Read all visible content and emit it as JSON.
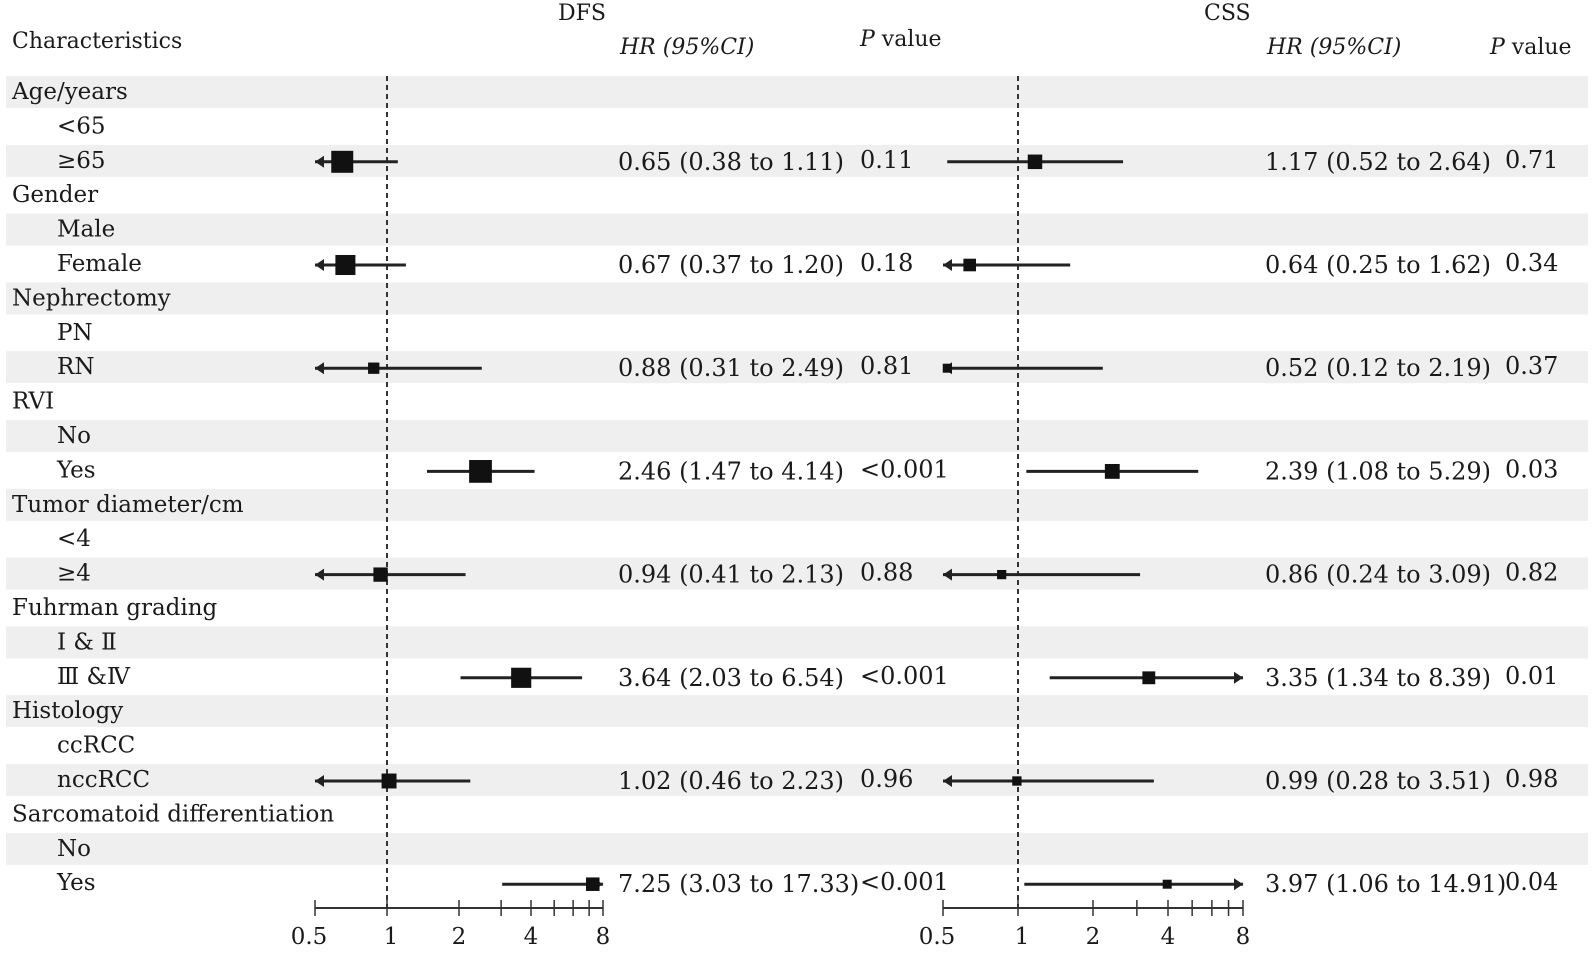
{
  "header": {
    "characteristics": "Characteristics",
    "dfs_title": "DFS",
    "css_title": "CSS",
    "hr_label": "HR (95%CI)",
    "p_italic": "P",
    "p_rest": " value"
  },
  "rows": [
    {
      "text": "Age/years",
      "indent": false
    },
    {
      "text": "<65",
      "indent": true
    },
    {
      "text": "≥65",
      "indent": true
    },
    {
      "text": "Gender",
      "indent": false
    },
    {
      "text": "Male",
      "indent": true
    },
    {
      "text": "Female",
      "indent": true
    },
    {
      "text": "Nephrectomy",
      "indent": false
    },
    {
      "text": "PN",
      "indent": true
    },
    {
      "text": "RN",
      "indent": true
    },
    {
      "text": "RVI",
      "indent": false
    },
    {
      "text": "No",
      "indent": true
    },
    {
      "text": "Yes",
      "indent": true
    },
    {
      "text": "Tumor diameter/cm",
      "indent": false
    },
    {
      "text": "<4",
      "indent": true
    },
    {
      "text": "≥4",
      "indent": true
    },
    {
      "text": "Fuhrman grading",
      "indent": false
    },
    {
      "text": "Ⅰ & Ⅱ",
      "indent": true
    },
    {
      "text": "Ⅲ &Ⅳ",
      "indent": true
    },
    {
      "text": "Histology",
      "indent": false
    },
    {
      "text": "ccRCC",
      "indent": true
    },
    {
      "text": "nccRCC",
      "indent": true
    },
    {
      "text": "Sarcomatoid differentiation",
      "indent": false
    },
    {
      "text": "No",
      "indent": true
    },
    {
      "text": "Yes",
      "indent": true
    }
  ],
  "chart_data": [
    {
      "type": "forest",
      "title": "DFS",
      "xscale": "log2",
      "xlim": [
        0.5,
        8
      ],
      "ticks": [
        "0.5",
        "1",
        "2",
        "4",
        "8"
      ],
      "reference_line": 1,
      "points": [
        {
          "row": 2,
          "hr": 0.65,
          "lo": 0.38,
          "hi": 1.11,
          "hr_text": "0.65 (0.38 to 1.11)",
          "p": "0.11"
        },
        {
          "row": 5,
          "hr": 0.67,
          "lo": 0.37,
          "hi": 1.2,
          "hr_text": "0.67 (0.37 to 1.20)",
          "p": "0.18"
        },
        {
          "row": 8,
          "hr": 0.88,
          "lo": 0.31,
          "hi": 2.49,
          "hr_text": "0.88 (0.31 to 2.49)",
          "p": "0.81"
        },
        {
          "row": 11,
          "hr": 2.46,
          "lo": 1.47,
          "hi": 4.14,
          "hr_text": "2.46 (1.47 to 4.14)",
          "p": "<0.001"
        },
        {
          "row": 14,
          "hr": 0.94,
          "lo": 0.41,
          "hi": 2.13,
          "hr_text": "0.94 (0.41 to 2.13)",
          "p": "0.88"
        },
        {
          "row": 17,
          "hr": 3.64,
          "lo": 2.03,
          "hi": 6.54,
          "hr_text": "3.64 (2.03 to 6.54)",
          "p": "<0.001"
        },
        {
          "row": 20,
          "hr": 1.02,
          "lo": 0.46,
          "hi": 2.23,
          "hr_text": "1.02 (0.46 to 2.23)",
          "p": "0.96"
        },
        {
          "row": 23,
          "hr": 7.25,
          "lo": 3.03,
          "hi": 17.33,
          "hr_text": "7.25 (3.03 to 17.33)",
          "p": "<0.001"
        }
      ]
    },
    {
      "type": "forest",
      "title": "CSS",
      "xscale": "log2",
      "xlim": [
        0.5,
        8
      ],
      "ticks": [
        "0.5",
        "1",
        "2",
        "4",
        "8"
      ],
      "reference_line": 1,
      "points": [
        {
          "row": 2,
          "hr": 1.17,
          "lo": 0.52,
          "hi": 2.64,
          "hr_text": "1.17 (0.52 to 2.64)",
          "p": "0.71"
        },
        {
          "row": 5,
          "hr": 0.64,
          "lo": 0.25,
          "hi": 1.62,
          "hr_text": "0.64 (0.25 to 1.62)",
          "p": "0.34"
        },
        {
          "row": 8,
          "hr": 0.52,
          "lo": 0.12,
          "hi": 2.19,
          "hr_text": "0.52 (0.12 to 2.19)",
          "p": "0.37"
        },
        {
          "row": 11,
          "hr": 2.39,
          "lo": 1.08,
          "hi": 5.29,
          "hr_text": "2.39 (1.08 to 5.29)",
          "p": "0.03"
        },
        {
          "row": 14,
          "hr": 0.86,
          "lo": 0.24,
          "hi": 3.09,
          "hr_text": "0.86 (0.24 to 3.09)",
          "p": "0.82"
        },
        {
          "row": 17,
          "hr": 3.35,
          "lo": 1.34,
          "hi": 8.39,
          "hr_text": "3.35 (1.34 to 8.39)",
          "p": "0.01"
        },
        {
          "row": 20,
          "hr": 0.99,
          "lo": 0.28,
          "hi": 3.51,
          "hr_text": "0.99 (0.28 to 3.51)",
          "p": "0.98"
        },
        {
          "row": 23,
          "hr": 3.97,
          "lo": 1.06,
          "hi": 14.91,
          "hr_text": "3.97 (1.06 to 14.91)",
          "p": "0.04"
        }
      ]
    }
  ]
}
